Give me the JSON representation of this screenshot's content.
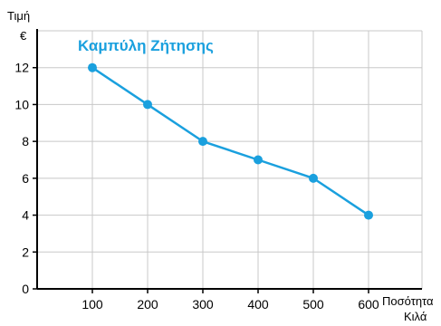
{
  "chart_data": {
    "type": "line",
    "title": "Καμπύλη Ζήτησης",
    "ylabel": "Τιμή",
    "ylabel_unit": "€",
    "xlabel": "Ποσότητα",
    "xlabel_unit": "Κιλά",
    "x": [
      100,
      200,
      300,
      400,
      500,
      600
    ],
    "y": [
      12,
      10,
      8,
      7,
      6,
      4
    ],
    "xlim": [
      0,
      600
    ],
    "ylim": [
      0,
      14
    ],
    "x_ticks": [
      "100",
      "200",
      "300",
      "400",
      "500",
      "600"
    ],
    "y_ticks": [
      "0",
      "2",
      "4",
      "6",
      "8",
      "10",
      "12"
    ],
    "y_tick_values": [
      0,
      2,
      4,
      6,
      8,
      10,
      12
    ],
    "grid": true,
    "series_color": "#1aa0de",
    "grid_color": "#c8c8c8"
  }
}
